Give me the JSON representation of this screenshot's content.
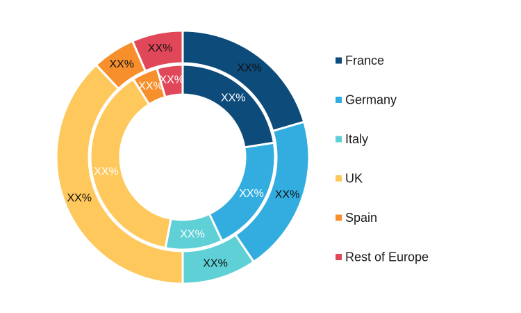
{
  "chart_data": {
    "type": "pie",
    "variant": "double-donut",
    "categories": [
      "France",
      "Germany",
      "Italy",
      "UK",
      "Spain",
      "Rest of Europe"
    ],
    "colors": [
      "#0d4b7a",
      "#33ade0",
      "#5fd0d6",
      "#ffc85c",
      "#f78f2d",
      "#e0485a"
    ],
    "series": [
      {
        "ring": "outer",
        "values": [
          20.5,
          20.0,
          9.5,
          38.0,
          5.5,
          6.5
        ],
        "labels": [
          "XX%",
          "XX%",
          "XX%",
          "XX%",
          "XX%",
          "XX%"
        ]
      },
      {
        "ring": "inner",
        "values": [
          22.5,
          20.5,
          10.0,
          38.0,
          4.5,
          4.5
        ],
        "labels": [
          "XX%",
          "XX%",
          "XX%",
          "XX%",
          "XX%",
          "XX%"
        ]
      }
    ],
    "legend": {
      "position": "right"
    }
  }
}
